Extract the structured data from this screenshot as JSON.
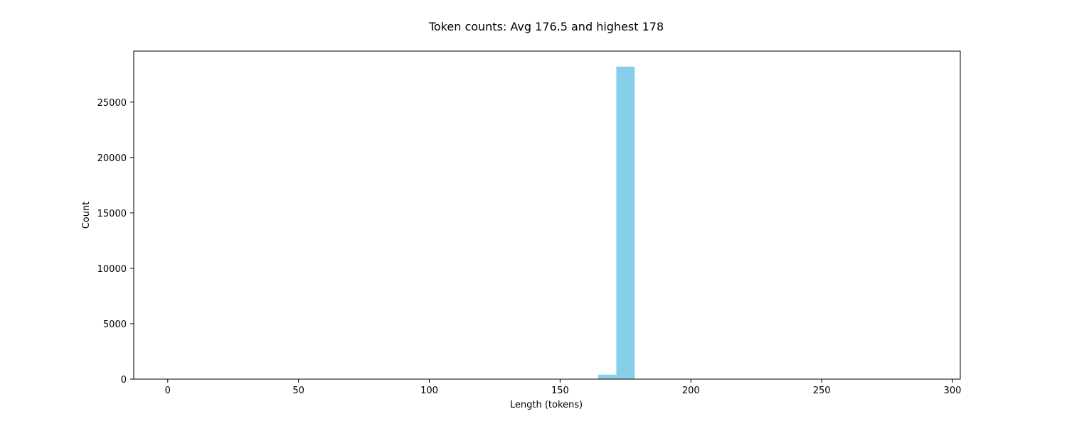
{
  "chart_data": {
    "type": "bar",
    "title": "Token counts: Avg 176.5 and highest 178",
    "xlabel": "Length (tokens)",
    "ylabel": "Count",
    "xlim": [
      -13,
      303
    ],
    "ylim": [
      0,
      29600
    ],
    "xticks": [
      0,
      50,
      100,
      150,
      200,
      250,
      300
    ],
    "yticks": [
      0,
      5000,
      10000,
      15000,
      20000,
      25000
    ],
    "bar_width": 7,
    "grid": false,
    "colors": {
      "bar": "#87ceeb"
    },
    "series": [
      {
        "x": [
          168,
          175
        ],
        "values": [
          400,
          28200
        ]
      }
    ]
  }
}
